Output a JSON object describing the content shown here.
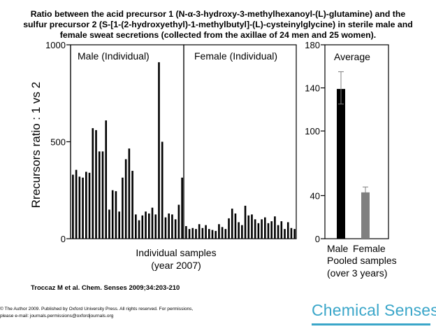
{
  "slide": {
    "title_lines": [
      "Ratio between the acid precursor 1 (N-α-3-hydroxy-3-methylhexanoyl-(L)-glutamine)  and the",
      "sulfur precursor 2 (S-[1-(2-hydroxyethyl)-1-methylbutyl]-(L)-cysteinylglycine)  in sterile male and",
      "female sweat secretions (collected from the axillae of 24 men and 25 women)."
    ],
    "citation": "Troccaz M et al. Chem. Senses 2009;34:203-210",
    "copyright_lines": [
      "© The Author  2009.  Published by Oxford University Press. All rights reserved.  For permissions,",
      "please e-mail: journals.permissions@oxfordjournals.org"
    ],
    "brand": "Chemical Senses",
    "brand_color": "#3aa6c9"
  },
  "chart_data": [
    {
      "type": "bar",
      "ylabel": "Rrecursors ratio : 1 vs 2",
      "xlabel_lines": [
        "Individual samples",
        "(year 2007)"
      ],
      "ylim": [
        0,
        1000
      ],
      "yticks": [
        0,
        500,
        1000
      ],
      "panel_labels": [
        "Male (Individual)",
        "Female (Individual)"
      ],
      "series": [
        {
          "name": "Male (Individual)",
          "color": "#000000",
          "values": [
            330,
            355,
            320,
            315,
            345,
            340,
            570,
            560,
            450,
            450,
            610,
            150,
            250,
            245,
            140,
            315,
            410,
            465,
            350,
            125,
            95,
            120,
            140,
            130,
            160,
            125,
            910,
            500,
            110,
            130,
            125,
            100,
            175,
            315
          ]
        },
        {
          "name": "Female (Individual)",
          "color": "#000000",
          "values": [
            65,
            50,
            55,
            50,
            75,
            55,
            70,
            50,
            45,
            40,
            75,
            60,
            50,
            105,
            155,
            130,
            85,
            70,
            170,
            120,
            125,
            100,
            80,
            100,
            110,
            80,
            90,
            115,
            70,
            90,
            50,
            85,
            55,
            50
          ]
        }
      ]
    },
    {
      "type": "bar",
      "title": "Average",
      "ylim": [
        0,
        180
      ],
      "yticks": [
        0,
        40,
        100,
        140,
        180
      ],
      "categories": [
        "Male",
        "Female"
      ],
      "xlabel_lines": [
        "Pooled samples",
        "(over 3 years)"
      ],
      "values": [
        139,
        43
      ],
      "error_upper": [
        155,
        48
      ],
      "error_lower": [
        125,
        38
      ],
      "colors": [
        "#000000",
        "#808080"
      ]
    }
  ]
}
